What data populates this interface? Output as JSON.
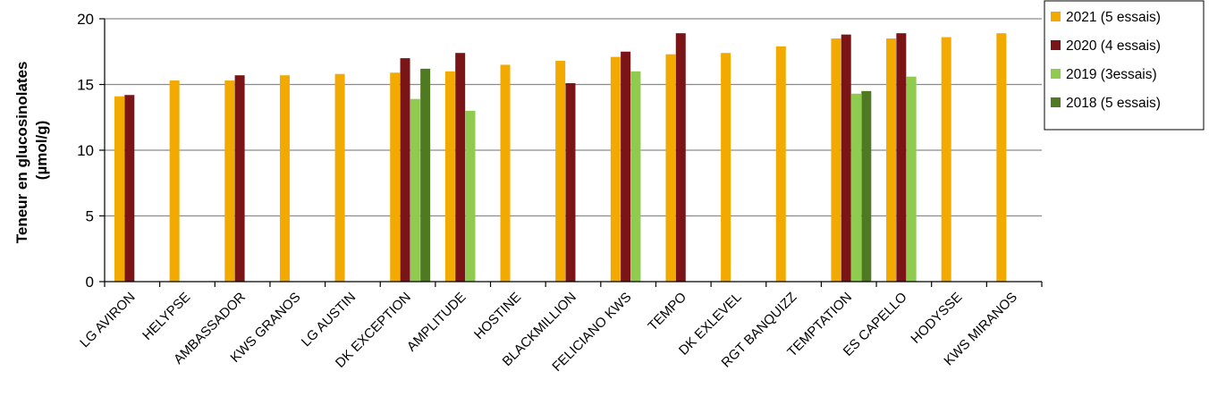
{
  "chart_data": {
    "type": "bar",
    "ylabel_lines": [
      "Teneur en glucosinolates",
      "(µmol/g)"
    ],
    "ylim": [
      0,
      20
    ],
    "yticks": [
      0,
      5,
      10,
      15,
      20
    ],
    "grid": true,
    "legend_position": "right",
    "categories": [
      "LG AVIRON",
      "HELYPSE",
      "AMBASSADOR",
      "KWS GRANOS",
      "LG AUSTIN",
      "DK EXCEPTION",
      "AMPLITUDE",
      "HOSTINE",
      "BLACKMILLION",
      "FELICIANO KWS",
      "TEMPO",
      "DK EXLEVEL",
      "RGT BANQUIZZ",
      "TEMPTATION",
      "ES CAPELLO",
      "HODYSSE",
      "KWS MIRANOS"
    ],
    "series": [
      {
        "name": "2021 (5 essais)",
        "color": "#F2A900",
        "values": [
          14.1,
          15.3,
          15.3,
          15.7,
          15.8,
          15.9,
          16.0,
          16.5,
          16.8,
          17.1,
          17.3,
          17.4,
          17.9,
          18.5,
          18.5,
          18.6,
          18.9
        ]
      },
      {
        "name": "2020 (4 essais)",
        "color": "#7B1416",
        "values": [
          14.2,
          null,
          15.7,
          null,
          null,
          17.0,
          17.4,
          null,
          15.1,
          17.5,
          18.9,
          null,
          null,
          18.8,
          18.9,
          null,
          null
        ]
      },
      {
        "name": "2019 (3essais)",
        "color": "#8FCB4F",
        "values": [
          null,
          null,
          null,
          null,
          null,
          13.9,
          13.0,
          null,
          null,
          16.0,
          null,
          null,
          null,
          14.3,
          15.6,
          null,
          null
        ]
      },
      {
        "name": "2018 (5 essais)",
        "color": "#4F7A21",
        "values": [
          null,
          null,
          null,
          null,
          null,
          16.2,
          null,
          null,
          null,
          null,
          null,
          null,
          null,
          14.5,
          null,
          null,
          null
        ]
      }
    ]
  }
}
